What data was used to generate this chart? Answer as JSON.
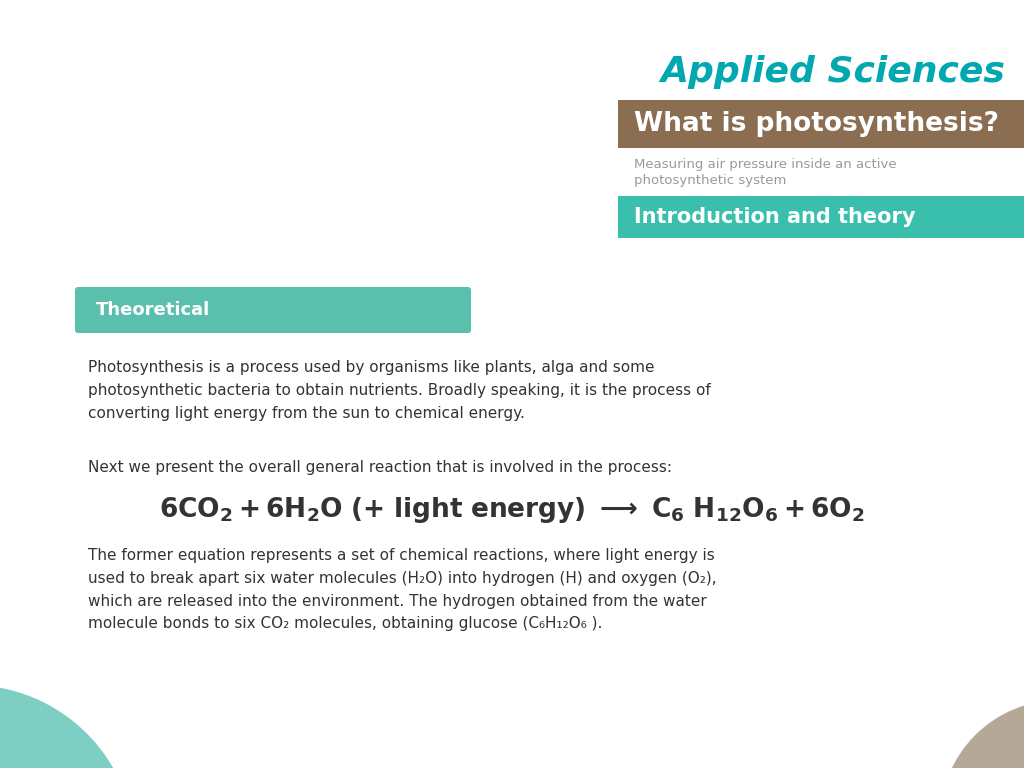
{
  "bg_color": "#ffffff",
  "title_applied": "Applied Sciences",
  "title_applied_color": "#00a8b0",
  "header_bg_color": "#8b6e52",
  "header_text": "What is photosynthesis?",
  "header_text_color": "#ffffff",
  "subtitle_line1": "Measuring air pressure inside an active",
  "subtitle_line2": "photosynthetic system",
  "subtitle_color": "#999999",
  "intro_band_color": "#3bbfad",
  "intro_band_text": "Introduction and theory",
  "intro_band_text_color": "#ffffff",
  "theoretical_band_color": "#5bbfad",
  "theoretical_band_text": "Theoretical",
  "theoretical_band_text_color": "#ffffff",
  "body_text_color": "#333333",
  "para1": "Photosynthesis is a process used by organisms like plants, alga and some\nphotosynthetic bacteria to obtain nutrients. Broadly speaking, it is the process of\nconverting light energy from the sun to chemical energy.",
  "para2": "Next we present the overall general reaction that is involved in the process:",
  "circle_teal_color": "#7dcfc4",
  "circle_brown_color": "#b5a898"
}
